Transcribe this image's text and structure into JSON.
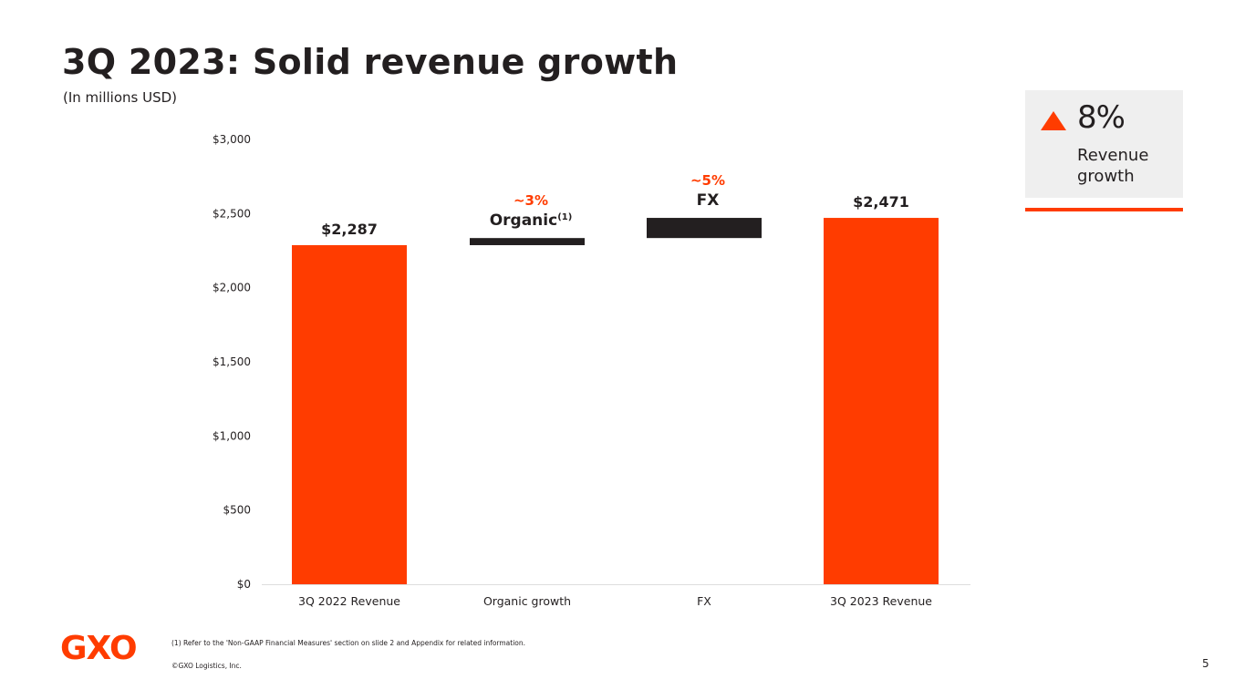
{
  "slide": {
    "title": "3Q 2023: Solid revenue growth",
    "subtitle": "(In millions USD)",
    "page_number": "5",
    "footnote": "(1) Refer to the 'Non-GAAP Financial Measures' section on slide 2 and Appendix for related information.",
    "copyright": "©GXO Logistics, Inc.",
    "logo_text": "GXO"
  },
  "kpi": {
    "icon": "up-triangle-icon",
    "value": "8%",
    "label": "Revenue growth"
  },
  "colors": {
    "accent": "#ff3c00",
    "bridge": "#231f20",
    "grid": "#dddddd"
  },
  "chart_data": {
    "type": "bar",
    "subtype": "waterfall",
    "title": "3Q 2023: Solid revenue growth",
    "ylabel": "In millions USD",
    "ylim": [
      0,
      3000
    ],
    "yticks": [
      0,
      500,
      1000,
      1500,
      2000,
      2500,
      3000
    ],
    "ytick_labels": [
      "$0",
      "$500",
      "$1,000",
      "$1,500",
      "$2,000",
      "$2,500",
      "$3,000"
    ],
    "categories": [
      "3Q 2022 Revenue",
      "Organic growth",
      "FX",
      "3Q 2023 Revenue"
    ],
    "bars": [
      {
        "category": "3Q 2022 Revenue",
        "kind": "total",
        "start": 0,
        "end": 2287,
        "label": "$2,287"
      },
      {
        "category": "Organic growth",
        "kind": "delta",
        "start": 2287,
        "end": 2335,
        "pct": "~3%",
        "name": "Organic",
        "sup": "(1)"
      },
      {
        "category": "FX",
        "kind": "delta",
        "start": 2335,
        "end": 2471,
        "pct": "~5%",
        "name": "FX"
      },
      {
        "category": "3Q 2023 Revenue",
        "kind": "total",
        "start": 0,
        "end": 2471,
        "label": "$2,471"
      }
    ]
  }
}
